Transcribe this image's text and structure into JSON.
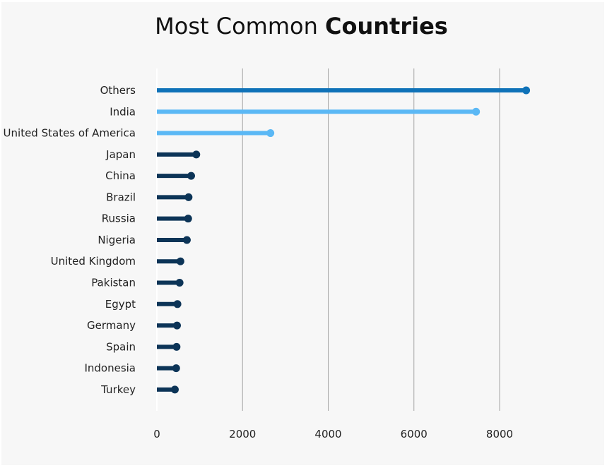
{
  "chart_data": {
    "type": "bar",
    "style": "lollipop",
    "title": {
      "light": "Most Common",
      "bold": "Countries"
    },
    "categories": [
      "Others",
      "India",
      "United States of America",
      "Japan",
      "China",
      "Brazil",
      "Russia",
      "Nigeria",
      "United Kingdom",
      "Pakistan",
      "Egypt",
      "Germany",
      "Spain",
      "Indonesia",
      "Turkey"
    ],
    "values": [
      8620,
      7450,
      2650,
      920,
      800,
      740,
      730,
      700,
      550,
      530,
      480,
      470,
      460,
      450,
      420
    ],
    "colors": [
      "#0f72b8",
      "#5bb8f5",
      "#5bb8f5",
      "#0c3457",
      "#0c3457",
      "#0c3457",
      "#0c3457",
      "#0c3457",
      "#0c3457",
      "#0c3457",
      "#0c3457",
      "#0c3457",
      "#0c3457",
      "#0c3457",
      "#0c3457"
    ],
    "xticks": [
      0,
      2000,
      4000,
      6000,
      8000
    ],
    "xlim": [
      0,
      10000
    ],
    "grid": true,
    "gridline_color": "#a6a6a6"
  }
}
